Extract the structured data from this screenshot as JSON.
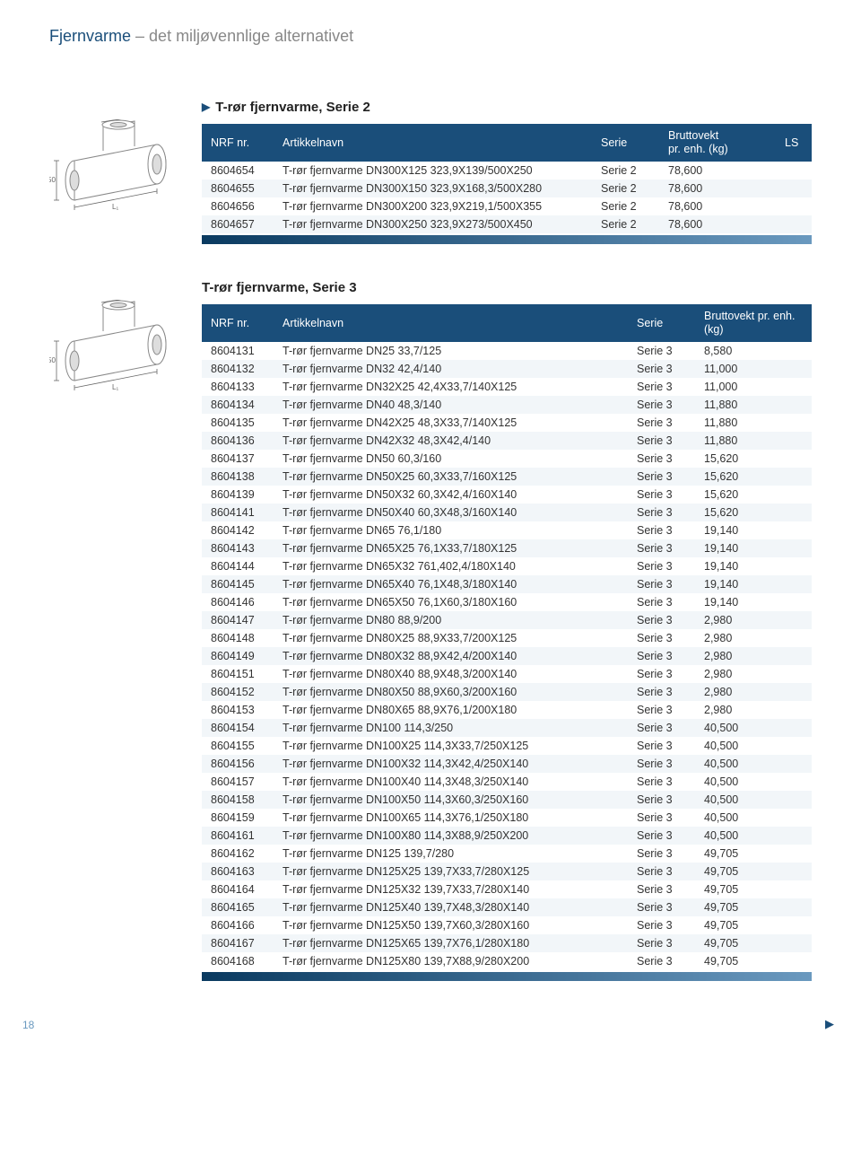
{
  "header": {
    "blue": "Fjernvarme",
    "grey": " – det miljøvennlige alternativet"
  },
  "page_number": "18",
  "blocks": [
    {
      "title_marker": "▶",
      "title": "T-rør fjernvarme, Serie 2",
      "has_ls": true,
      "headers": {
        "nrf": "NRF nr.",
        "art": "Artikkelnavn",
        "serie": "Serie",
        "kg": "Bruttovekt\npr. enh. (kg)",
        "ls": "LS"
      },
      "rows": [
        {
          "nrf": "8604654",
          "art": "T-rør fjernvarme DN300X125 323,9X139/500X250",
          "serie": "Serie 2",
          "kg": "78,600",
          "ls": ""
        },
        {
          "nrf": "8604655",
          "art": "T-rør fjernvarme DN300X150 323,9X168,3/500X280",
          "serie": "Serie 2",
          "kg": "78,600",
          "ls": ""
        },
        {
          "nrf": "8604656",
          "art": "T-rør fjernvarme DN300X200 323,9X219,1/500X355",
          "serie": "Serie 2",
          "kg": "78,600",
          "ls": ""
        },
        {
          "nrf": "8604657",
          "art": "T-rør fjernvarme DN300X250 323,9X273/500X450",
          "serie": "Serie 2",
          "kg": "78,600",
          "ls": ""
        }
      ]
    },
    {
      "title_marker": "",
      "title": "T-rør fjernvarme, Serie 3",
      "has_ls": false,
      "headers": {
        "nrf": "NRF nr.",
        "art": "Artikkelnavn",
        "serie": "Serie",
        "kg": "Bruttovekt pr. enh. (kg)"
      },
      "rows": [
        {
          "nrf": "8604131",
          "art": "T-rør fjernvarme DN25 33,7/125",
          "serie": "Serie 3",
          "kg": "8,580"
        },
        {
          "nrf": "8604132",
          "art": "T-rør fjernvarme DN32 42,4/140",
          "serie": "Serie 3",
          "kg": "11,000"
        },
        {
          "nrf": "8604133",
          "art": "T-rør fjernvarme DN32X25 42,4X33,7/140X125",
          "serie": "Serie 3",
          "kg": "11,000"
        },
        {
          "nrf": "8604134",
          "art": "T-rør fjernvarme DN40 48,3/140",
          "serie": "Serie 3",
          "kg": "11,880"
        },
        {
          "nrf": "8604135",
          "art": "T-rør fjernvarme DN42X25 48,3X33,7/140X125",
          "serie": "Serie 3",
          "kg": "11,880"
        },
        {
          "nrf": "8604136",
          "art": "T-rør fjernvarme DN42X32 48,3X42,4/140",
          "serie": "Serie 3",
          "kg": "11,880"
        },
        {
          "nrf": "8604137",
          "art": "T-rør fjernvarme DN50 60,3/160",
          "serie": "Serie 3",
          "kg": "15,620"
        },
        {
          "nrf": "8604138",
          "art": "T-rør fjernvarme DN50X25 60,3X33,7/160X125",
          "serie": "Serie 3",
          "kg": "15,620"
        },
        {
          "nrf": "8604139",
          "art": "T-rør fjernvarme DN50X32 60,3X42,4/160X140",
          "serie": "Serie 3",
          "kg": "15,620"
        },
        {
          "nrf": "8604141",
          "art": "T-rør fjernvarme DN50X40 60,3X48,3/160X140",
          "serie": "Serie 3",
          "kg": "15,620"
        },
        {
          "nrf": "8604142",
          "art": "T-rør fjernvarme DN65 76,1/180",
          "serie": "Serie 3",
          "kg": "19,140"
        },
        {
          "nrf": "8604143",
          "art": "T-rør fjernvarme DN65X25 76,1X33,7/180X125",
          "serie": "Serie 3",
          "kg": "19,140"
        },
        {
          "nrf": "8604144",
          "art": "T-rør fjernvarme DN65X32 761,402,4/180X140",
          "serie": "Serie 3",
          "kg": "19,140"
        },
        {
          "nrf": "8604145",
          "art": "T-rør fjernvarme DN65X40 76,1X48,3/180X140",
          "serie": "Serie 3",
          "kg": "19,140"
        },
        {
          "nrf": "8604146",
          "art": "T-rør fjernvarme DN65X50 76,1X60,3/180X160",
          "serie": "Serie 3",
          "kg": "19,140"
        },
        {
          "nrf": "8604147",
          "art": "T-rør fjernvarme DN80 88,9/200",
          "serie": "Serie 3",
          "kg": "2,980"
        },
        {
          "nrf": "8604148",
          "art": "T-rør fjernvarme DN80X25 88,9X33,7/200X125",
          "serie": "Serie 3",
          "kg": "2,980"
        },
        {
          "nrf": "8604149",
          "art": "T-rør fjernvarme DN80X32 88,9X42,4/200X140",
          "serie": "Serie 3",
          "kg": "2,980"
        },
        {
          "nrf": "8604151",
          "art": "T-rør fjernvarme DN80X40 88,9X48,3/200X140",
          "serie": "Serie 3",
          "kg": "2,980"
        },
        {
          "nrf": "8604152",
          "art": "T-rør fjernvarme DN80X50 88,9X60,3/200X160",
          "serie": "Serie 3",
          "kg": "2,980"
        },
        {
          "nrf": "8604153",
          "art": "T-rør fjernvarme DN80X65 88,9X76,1/200X180",
          "serie": "Serie 3",
          "kg": "2,980"
        },
        {
          "nrf": "8604154",
          "art": "T-rør fjernvarme DN100 114,3/250",
          "serie": "Serie 3",
          "kg": "40,500"
        },
        {
          "nrf": "8604155",
          "art": "T-rør fjernvarme DN100X25 114,3X33,7/250X125",
          "serie": "Serie 3",
          "kg": "40,500"
        },
        {
          "nrf": "8604156",
          "art": "T-rør fjernvarme DN100X32 114,3X42,4/250X140",
          "serie": "Serie 3",
          "kg": "40,500"
        },
        {
          "nrf": "8604157",
          "art": "T-rør fjernvarme DN100X40 114,3X48,3/250X140",
          "serie": "Serie 3",
          "kg": "40,500"
        },
        {
          "nrf": "8604158",
          "art": "T-rør fjernvarme DN100X50 114,3X60,3/250X160",
          "serie": "Serie 3",
          "kg": "40,500"
        },
        {
          "nrf": "8604159",
          "art": "T-rør fjernvarme DN100X65 114,3X76,1/250X180",
          "serie": "Serie 3",
          "kg": "40,500"
        },
        {
          "nrf": "8604161",
          "art": "T-rør fjernvarme DN100X80 114,3X88,9/250X200",
          "serie": "Serie 3",
          "kg": "40,500"
        },
        {
          "nrf": "8604162",
          "art": "T-rør fjernvarme DN125 139,7/280",
          "serie": "Serie 3",
          "kg": "49,705"
        },
        {
          "nrf": "8604163",
          "art": "T-rør fjernvarme DN125X25 139,7X33,7/280X125",
          "serie": "Serie 3",
          "kg": "49,705"
        },
        {
          "nrf": "8604164",
          "art": "T-rør fjernvarme DN125X32 139,7X33,7/280X140",
          "serie": "Serie 3",
          "kg": "49,705"
        },
        {
          "nrf": "8604165",
          "art": "T-rør fjernvarme DN125X40 139,7X48,3/280X140",
          "serie": "Serie 3",
          "kg": "49,705"
        },
        {
          "nrf": "8604166",
          "art": "T-rør fjernvarme DN125X50 139,7X60,3/280X160",
          "serie": "Serie 3",
          "kg": "49,705"
        },
        {
          "nrf": "8604167",
          "art": "T-rør fjernvarme DN125X65 139,7X76,1/280X180",
          "serie": "Serie 3",
          "kg": "49,705"
        },
        {
          "nrf": "8604168",
          "art": "T-rør fjernvarme DN125X80 139,7X88,9/280X200",
          "serie": "Serie 3",
          "kg": "49,705"
        }
      ]
    }
  ]
}
